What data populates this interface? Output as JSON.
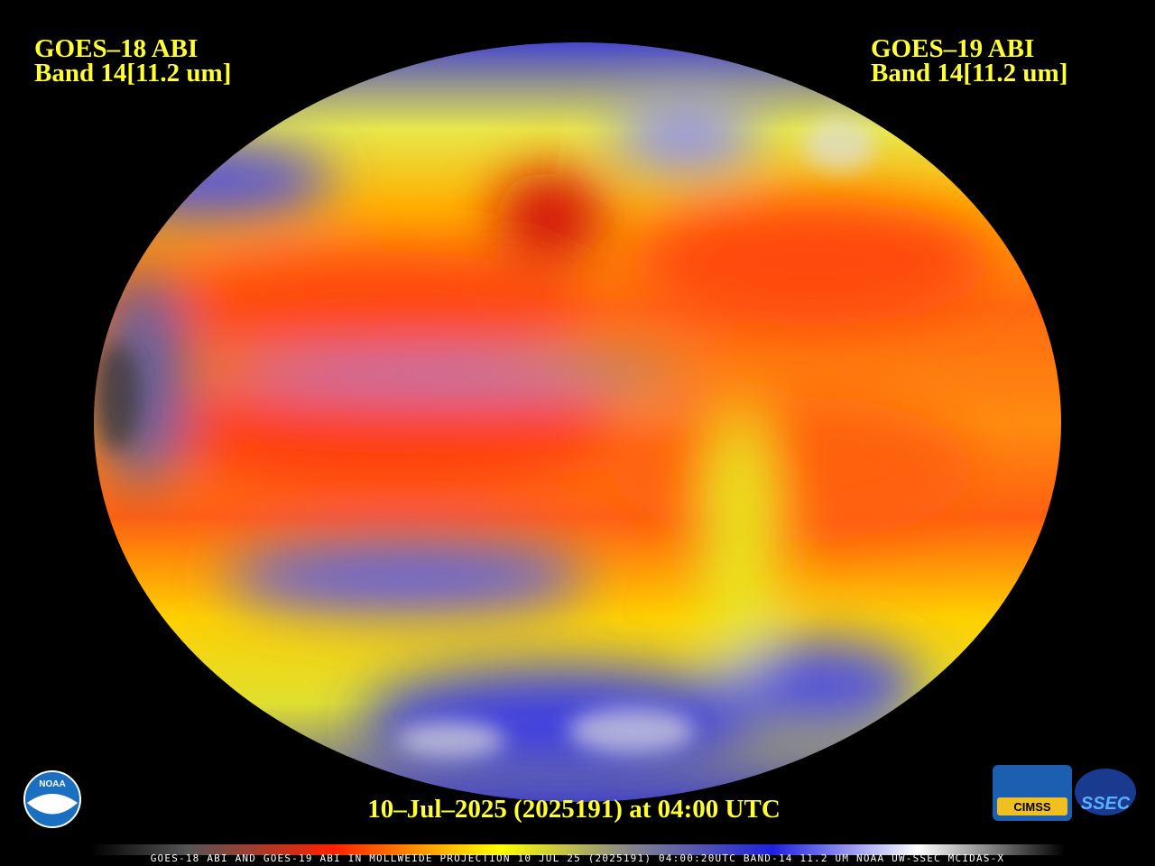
{
  "header": {
    "left": {
      "satellite": "GOES–18 ABI",
      "band": "Band 14[11.2 um]"
    },
    "right": {
      "satellite": "GOES–19 ABI",
      "band": "Band 14[11.2 um]"
    }
  },
  "timestamp": "10–Jul–2025 (2025191) at 04:00 UTC",
  "footer": "GOES-18 ABI AND GOES-19 ABI IN MOLLWEIDE PROJECTION 10 JUL 25 (2025191) 04:00:20UTC BAND-14 11.2 UM NOAA UW-SSEC MCIDAS-X",
  "logos": {
    "noaa": "NOAA",
    "cimss": "CIMSS",
    "ssec": "SSEC"
  }
}
